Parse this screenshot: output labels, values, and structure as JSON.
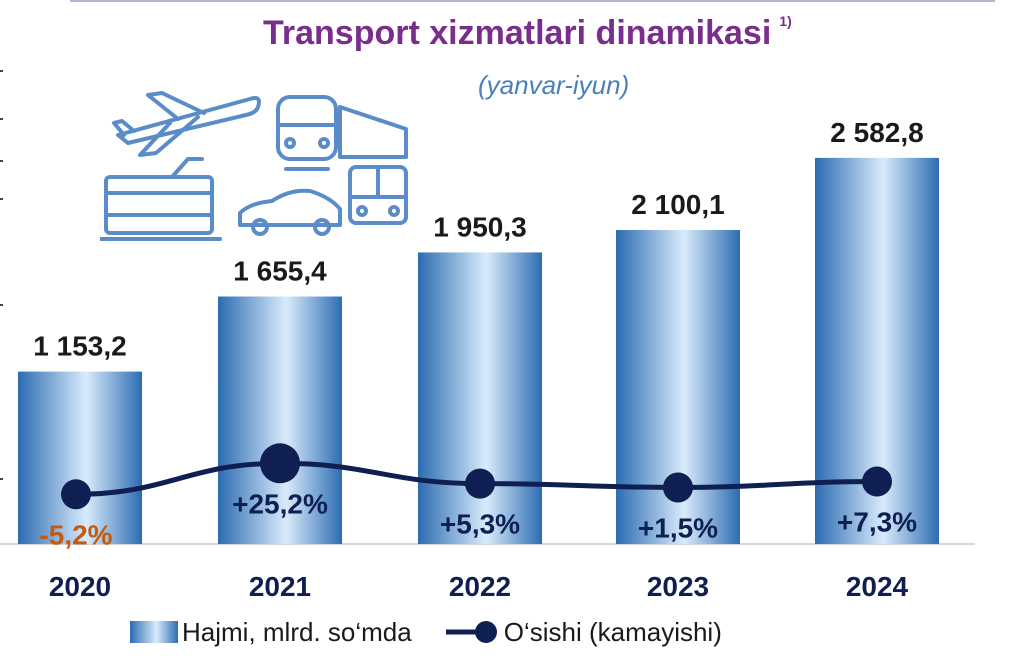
{
  "title": "Transport xizmatlari dinamikasi",
  "title_note": "1)",
  "subtitle": "(yanvar-iyun)",
  "icons": [
    "airplane-icon",
    "train-icon",
    "tram-icon",
    "car-icon",
    "bus-icon"
  ],
  "colors": {
    "title": "#7b2d8e",
    "subtitle": "#4a7fbe",
    "bar": "#2c6cb2",
    "bar_highlight": "#d9ebfb",
    "line": "#0f1f52",
    "negative_label": "#c55a11",
    "icon_stroke": "#5a8cc8"
  },
  "chart_data": {
    "type": "bar",
    "categories": [
      "2020",
      "2021",
      "2022",
      "2023",
      "2024"
    ],
    "series": [
      {
        "name": "Hajmi, mlrd. so‘mda",
        "type": "bar",
        "values": [
          1153.2,
          1655.4,
          1950.3,
          2100.1,
          2582.8
        ],
        "labels": [
          "1 153,2",
          "1 655,4",
          "1 950,3",
          "2 100,1",
          "2 582,8"
        ]
      },
      {
        "name": "O‘sishi (kamayishi)",
        "type": "line",
        "values": [
          -5.2,
          25.2,
          5.3,
          1.5,
          7.3
        ],
        "labels": [
          "-5,2%",
          "+25,2%",
          "+5,3%",
          "+1,5%",
          "+7,3%"
        ]
      }
    ],
    "legend_position": "bottom",
    "grid": false
  }
}
